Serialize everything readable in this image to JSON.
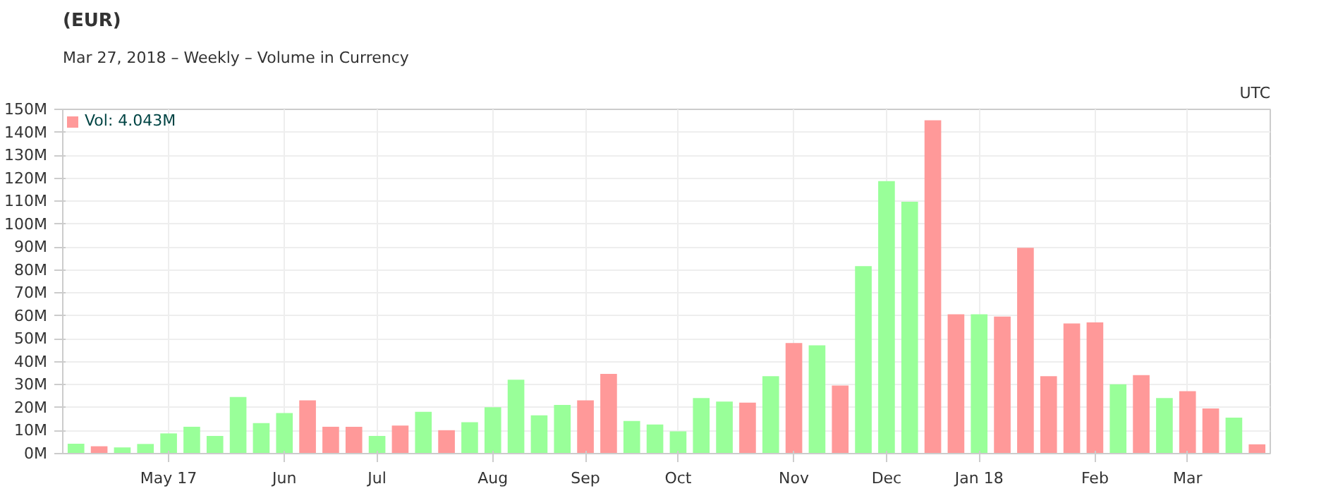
{
  "chart_data": {
    "type": "bar",
    "title": "(EUR)",
    "subtitle": "Mar 27, 2018 – Weekly – Volume in Currency",
    "annotations": [
      "UTC"
    ],
    "x": [
      "2017-04-03",
      "2017-04-10",
      "2017-04-17",
      "2017-04-24",
      "2017-05-01",
      "2017-05-08",
      "2017-05-15",
      "2017-05-22",
      "2017-05-29",
      "2017-06-05",
      "2017-06-12",
      "2017-06-19",
      "2017-06-26",
      "2017-07-03",
      "2017-07-10",
      "2017-07-17",
      "2017-07-24",
      "2017-07-31",
      "2017-08-07",
      "2017-08-14",
      "2017-08-21",
      "2017-08-28",
      "2017-09-04",
      "2017-09-11",
      "2017-09-18",
      "2017-09-25",
      "2017-10-02",
      "2017-10-09",
      "2017-10-16",
      "2017-10-23",
      "2017-10-30",
      "2017-11-06",
      "2017-11-13",
      "2017-11-20",
      "2017-11-27",
      "2017-12-04",
      "2017-12-11",
      "2017-12-18",
      "2017-12-25",
      "2018-01-01",
      "2018-01-08",
      "2018-01-15",
      "2018-01-22",
      "2018-01-29",
      "2018-02-05",
      "2018-02-12",
      "2018-02-19",
      "2018-02-26",
      "2018-03-05",
      "2018-03-12",
      "2018-03-19",
      "2018-03-26"
    ],
    "series": [
      {
        "name": "Vol: 4.043M",
        "values": [
          4.3,
          3.2,
          2.7,
          4.2,
          8.8,
          11.7,
          7.7,
          24.7,
          13.3,
          17.7,
          23.2,
          11.7,
          11.7,
          7.7,
          12.2,
          18.2,
          10.2,
          13.7,
          20.2,
          32.2,
          16.7,
          21.2,
          23.2,
          34.7,
          14.2,
          12.7,
          9.7,
          24.2,
          22.7,
          22.2,
          33.7,
          48.2,
          47.2,
          29.7,
          81.7,
          118.7,
          109.7,
          145.2,
          60.7,
          60.7,
          59.7,
          89.7,
          33.7,
          56.7,
          57.2,
          30.2,
          34.2,
          24.2,
          27.2,
          19.7,
          15.7,
          4.043
        ],
        "colors": [
          "#99ff99",
          "#ff9999",
          "#99ff99",
          "#99ff99",
          "#99ff99",
          "#99ff99",
          "#99ff99",
          "#99ff99",
          "#99ff99",
          "#99ff99",
          "#ff9999",
          "#ff9999",
          "#ff9999",
          "#99ff99",
          "#ff9999",
          "#99ff99",
          "#ff9999",
          "#99ff99",
          "#99ff99",
          "#99ff99",
          "#99ff99",
          "#99ff99",
          "#ff9999",
          "#ff9999",
          "#99ff99",
          "#99ff99",
          "#99ff99",
          "#99ff99",
          "#99ff99",
          "#ff9999",
          "#99ff99",
          "#ff9999",
          "#99ff99",
          "#ff9999",
          "#99ff99",
          "#99ff99",
          "#99ff99",
          "#ff9999",
          "#ff9999",
          "#99ff99",
          "#ff9999",
          "#ff9999",
          "#ff9999",
          "#ff9999",
          "#ff9999",
          "#99ff99",
          "#ff9999",
          "#99ff99",
          "#ff9999",
          "#ff9999",
          "#99ff99",
          "#ff9999"
        ]
      }
    ],
    "xlim": [
      "2017-03-30",
      "2018-03-30"
    ],
    "xticks": [
      {
        "value": "2017-05-01",
        "label": "May 17"
      },
      {
        "value": "2017-06-05",
        "label": "Jun"
      },
      {
        "value": "2017-07-03",
        "label": "Jul"
      },
      {
        "value": "2017-08-07",
        "label": "Aug"
      },
      {
        "value": "2017-09-04",
        "label": "Sep"
      },
      {
        "value": "2017-10-02",
        "label": "Oct"
      },
      {
        "value": "2017-11-06",
        "label": "Nov"
      },
      {
        "value": "2017-12-04",
        "label": "Dec"
      },
      {
        "value": "2018-01-01",
        "label": "Jan 18"
      },
      {
        "value": "2018-02-05",
        "label": "Feb"
      },
      {
        "value": "2018-03-05",
        "label": "Mar"
      }
    ],
    "ylim": [
      0,
      150
    ],
    "yticks": [
      {
        "value": 0,
        "label": "0M"
      },
      {
        "value": 10,
        "label": "10M"
      },
      {
        "value": 20,
        "label": "20M"
      },
      {
        "value": 30,
        "label": "30M"
      },
      {
        "value": 40,
        "label": "40M"
      },
      {
        "value": 50,
        "label": "50M"
      },
      {
        "value": 60,
        "label": "60M"
      },
      {
        "value": 70,
        "label": "70M"
      },
      {
        "value": 80,
        "label": "80M"
      },
      {
        "value": 90,
        "label": "90M"
      },
      {
        "value": 100,
        "label": "100M"
      },
      {
        "value": 110,
        "label": "110M"
      },
      {
        "value": 120,
        "label": "120M"
      },
      {
        "value": 130,
        "label": "130M"
      },
      {
        "value": 140,
        "label": "140M"
      },
      {
        "value": 150,
        "label": "150M"
      }
    ],
    "grid": true,
    "legend": "top left"
  }
}
